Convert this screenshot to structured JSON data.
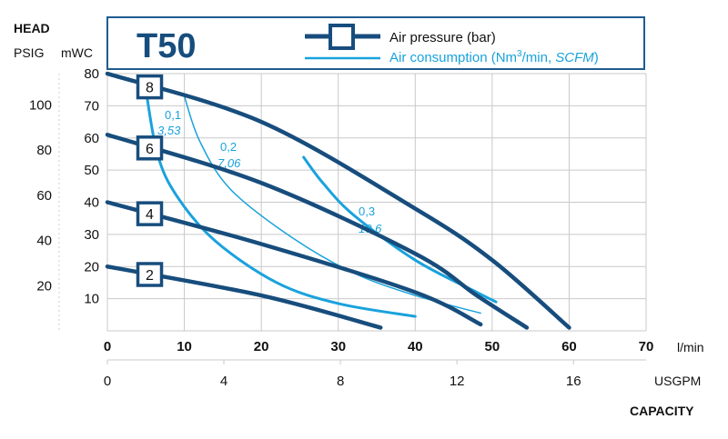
{
  "chart_data": {
    "type": "line",
    "title": "T50",
    "colors": {
      "pressure": "#174d7d",
      "air": "#19a2dc",
      "grid": "#c9c9c9",
      "legend_border": "#1f5b90"
    },
    "legend": {
      "pressure_label": "Air pressure (bar)",
      "air_label_prefix": "Air consumption (Nm",
      "air_label_sup": "3",
      "air_label_mid": "/min, ",
      "air_label_unit_it": "SCFM",
      "air_label_suffix": ")"
    },
    "y_axis_headers": {
      "head": "HEAD",
      "psig": "PSIG",
      "mwc": "mWC"
    },
    "x_axis": {
      "unit_lmin": "l/min",
      "unit_usgpm": "USGPM",
      "label": "CAPACITY",
      "lmin_ticks": [
        0,
        10,
        20,
        30,
        40,
        50,
        60,
        70
      ],
      "usgpm_ticks": [
        0,
        4,
        8,
        12,
        16
      ],
      "xlim": [
        0,
        70
      ]
    },
    "y_axis": {
      "mwc_ticks": [
        10,
        20,
        30,
        40,
        50,
        60,
        70,
        80
      ],
      "psig_ticks": [
        20,
        40,
        60,
        80,
        100
      ],
      "ylim": [
        0,
        80
      ]
    },
    "pressure_series": [
      {
        "label": "8",
        "points": [
          [
            0,
            80
          ],
          [
            20,
            65
          ],
          [
            40,
            38
          ],
          [
            50,
            22
          ],
          [
            60,
            1
          ]
        ]
      },
      {
        "label": "6",
        "points": [
          [
            0,
            61
          ],
          [
            20,
            46
          ],
          [
            40,
            24
          ],
          [
            48,
            11
          ],
          [
            54.5,
            1
          ]
        ]
      },
      {
        "label": "4",
        "points": [
          [
            0,
            40
          ],
          [
            20,
            27
          ],
          [
            40,
            12
          ],
          [
            48.5,
            2
          ]
        ]
      },
      {
        "label": "2",
        "points": [
          [
            0,
            20
          ],
          [
            20,
            11
          ],
          [
            35.5,
            1
          ]
        ]
      }
    ],
    "air_series": [
      {
        "label_top": "0,1",
        "label_bottom": "3,53",
        "points": [
          [
            5,
            75
          ],
          [
            6.5,
            55
          ],
          [
            9,
            42
          ],
          [
            14,
            28
          ],
          [
            22,
            15
          ],
          [
            30,
            8.5
          ],
          [
            40,
            4.5
          ]
        ],
        "width": 3
      },
      {
        "label_top": "0,2",
        "label_bottom": "7,06",
        "points": [
          [
            10,
            73
          ],
          [
            12,
            59
          ],
          [
            16,
            44
          ],
          [
            24,
            29
          ],
          [
            32,
            18
          ],
          [
            40,
            11
          ],
          [
            48.5,
            5.5
          ]
        ],
        "width": 1.5
      },
      {
        "label_top": "0,3",
        "label_bottom": "10,6",
        "points": [
          [
            25.5,
            54
          ],
          [
            28,
            46
          ],
          [
            32,
            36
          ],
          [
            40,
            22
          ],
          [
            48,
            12
          ],
          [
            50.5,
            9
          ]
        ],
        "width": 3
      }
    ]
  }
}
